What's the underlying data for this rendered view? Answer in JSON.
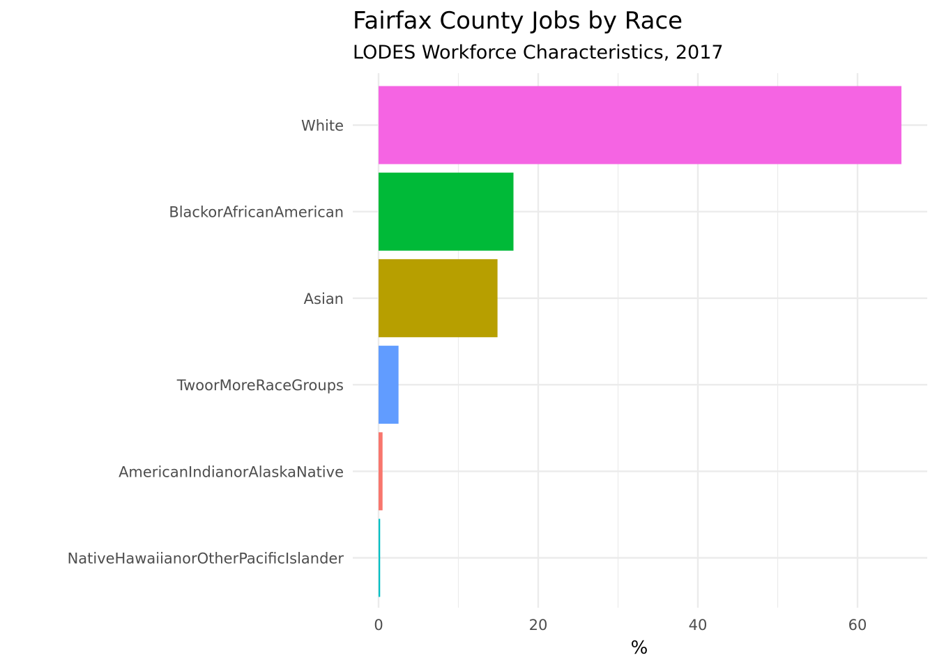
{
  "chart_data": {
    "type": "bar",
    "orientation": "horizontal",
    "title": "Fairfax County Jobs by Race",
    "subtitle": "LODES Workforce Characteristics, 2017",
    "xlabel": "%",
    "ylabel": "",
    "xlim": [
      0,
      68.5
    ],
    "x_ticks": [
      0,
      20,
      40,
      60
    ],
    "x_tick_labels": [
      "0",
      "20",
      "40",
      "60"
    ],
    "grid": true,
    "legend": "none",
    "categories": [
      "White",
      "BlackorAfricanAmerican",
      "Asian",
      "TwoorMoreRaceGroups",
      "AmericanIndianorAlaskaNative",
      "NativeHawaiianorOtherPacificIslander"
    ],
    "values": [
      65.5,
      16.9,
      14.9,
      2.5,
      0.5,
      0.2
    ],
    "colors": [
      "#f564e3",
      "#00ba38",
      "#b79f00",
      "#619cff",
      "#f8766d",
      "#00bfc4"
    ]
  }
}
